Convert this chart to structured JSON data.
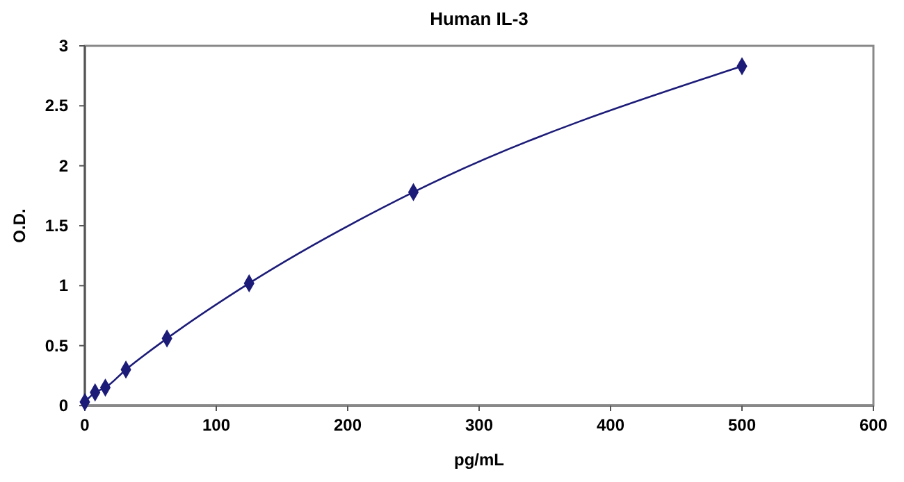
{
  "chart_data": {
    "type": "line",
    "title": "Human IL-3",
    "xlabel": "pg/mL",
    "ylabel": "O.D.",
    "x": [
      0,
      7.8,
      15.6,
      31.25,
      62.5,
      125,
      250,
      500
    ],
    "series": [
      {
        "color": "#1c1c78",
        "values": [
          0.03,
          0.11,
          0.15,
          0.3,
          0.56,
          1.02,
          1.78,
          2.83
        ]
      }
    ],
    "xlim": [
      0,
      600
    ],
    "xticks": [
      0,
      100,
      200,
      300,
      400,
      500,
      600
    ],
    "ylim": [
      0,
      3
    ],
    "yticks": [
      0,
      0.5,
      1,
      1.5,
      2,
      2.5,
      3
    ],
    "grid": false,
    "marker": "diamond",
    "line_style": "solid"
  }
}
